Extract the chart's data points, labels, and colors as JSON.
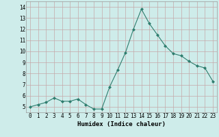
{
  "x": [
    0,
    1,
    2,
    3,
    4,
    5,
    6,
    7,
    8,
    9,
    10,
    11,
    12,
    13,
    14,
    15,
    16,
    17,
    18,
    19,
    20,
    21,
    22,
    23
  ],
  "y": [
    5.0,
    5.2,
    5.4,
    5.8,
    5.5,
    5.5,
    5.7,
    5.2,
    4.8,
    4.8,
    6.8,
    8.3,
    9.9,
    12.0,
    13.8,
    12.5,
    11.5,
    10.5,
    9.8,
    9.6,
    9.1,
    8.7,
    8.5,
    7.3
  ],
  "line_color": "#2e7d6e",
  "marker": "D",
  "marker_size": 2,
  "bg_color": "#ceecea",
  "grid_color": "#c4a8a8",
  "xlabel": "Humidex (Indice chaleur)",
  "ylabel_ticks": [
    5,
    6,
    7,
    8,
    9,
    10,
    11,
    12,
    13,
    14
  ],
  "ylim": [
    4.5,
    14.5
  ],
  "xlim": [
    -0.5,
    23.5
  ],
  "xlabel_fontsize": 6.5,
  "tick_fontsize": 5.5
}
